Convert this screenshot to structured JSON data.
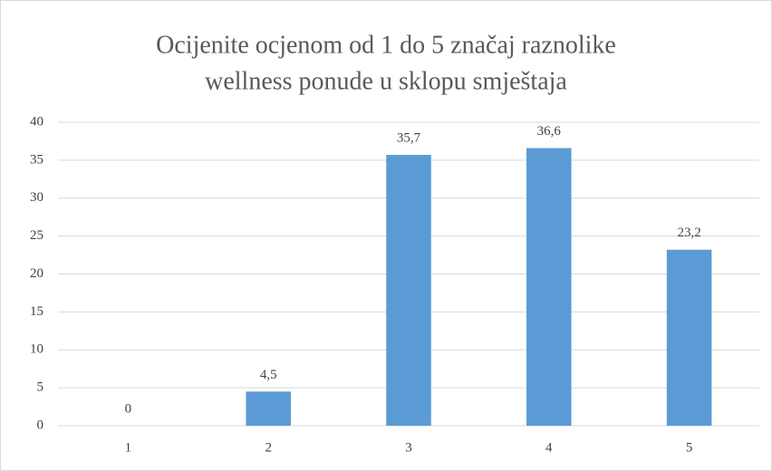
{
  "chart_data": {
    "type": "bar",
    "title": [
      "Ocijenite ocjenom od 1 do 5 značaj raznolike",
      "wellness ponude u sklopu smještaja"
    ],
    "categories": [
      "1",
      "2",
      "3",
      "4",
      "5"
    ],
    "values": [
      0,
      4.5,
      35.7,
      36.6,
      23.2
    ],
    "value_labels": [
      "0",
      "4,5",
      "35,7",
      "36,6",
      "23,2"
    ],
    "color": "#5b9bd5",
    "ylim": [
      0,
      40
    ],
    "yticks": [
      0,
      5,
      10,
      15,
      20,
      25,
      30,
      35,
      40
    ],
    "grid": true
  }
}
